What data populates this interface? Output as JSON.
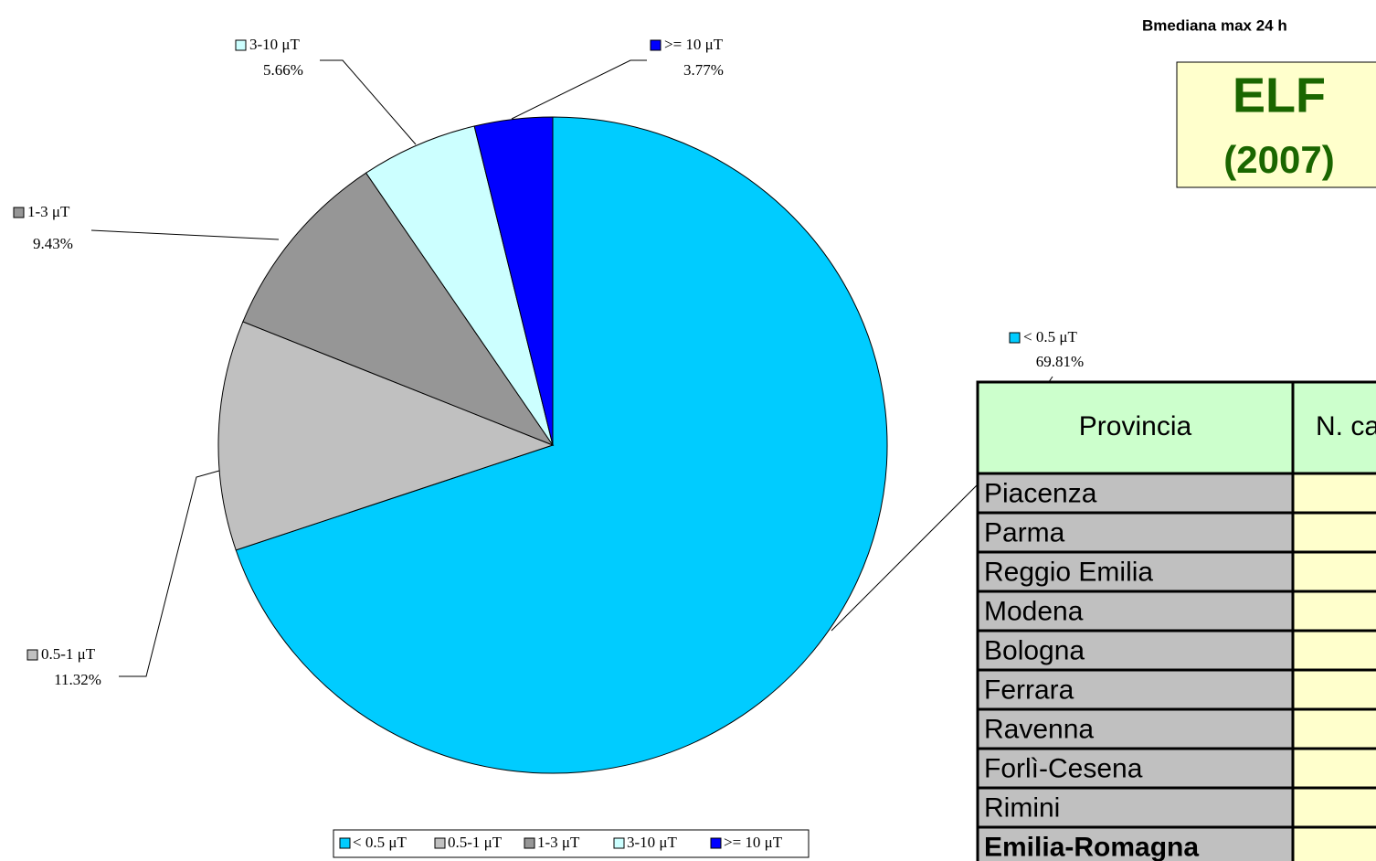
{
  "chart_data": {
    "type": "pie",
    "categories": [
      "< 0.5 μT",
      "0.5-1 μT",
      "1-3 μT",
      "3-10 μT",
      ">= 10 μT"
    ],
    "values": [
      69.81,
      11.32,
      9.43,
      5.66,
      3.77
    ],
    "value_labels": [
      "69.81%",
      "11.32%",
      "9.43%",
      "5.66%",
      "3.77%"
    ],
    "colors": [
      "#00ccff",
      "#c0c0c0",
      "#969696",
      "#ccffff",
      "#0000ff"
    ],
    "legend": "bottom"
  },
  "header": {
    "caption": "Bmediana max 24 h",
    "title": "ELF",
    "year": "(2007)"
  },
  "table": {
    "header": [
      "Provincia",
      "N. ca"
    ],
    "rows": [
      "Piacenza",
      "Parma",
      "Reggio Emilia",
      "Modena",
      "Bologna",
      "Ferrara",
      "Ravenna",
      "Forlì-Cesena",
      "Rimini",
      "Emilia-Romagna"
    ]
  }
}
